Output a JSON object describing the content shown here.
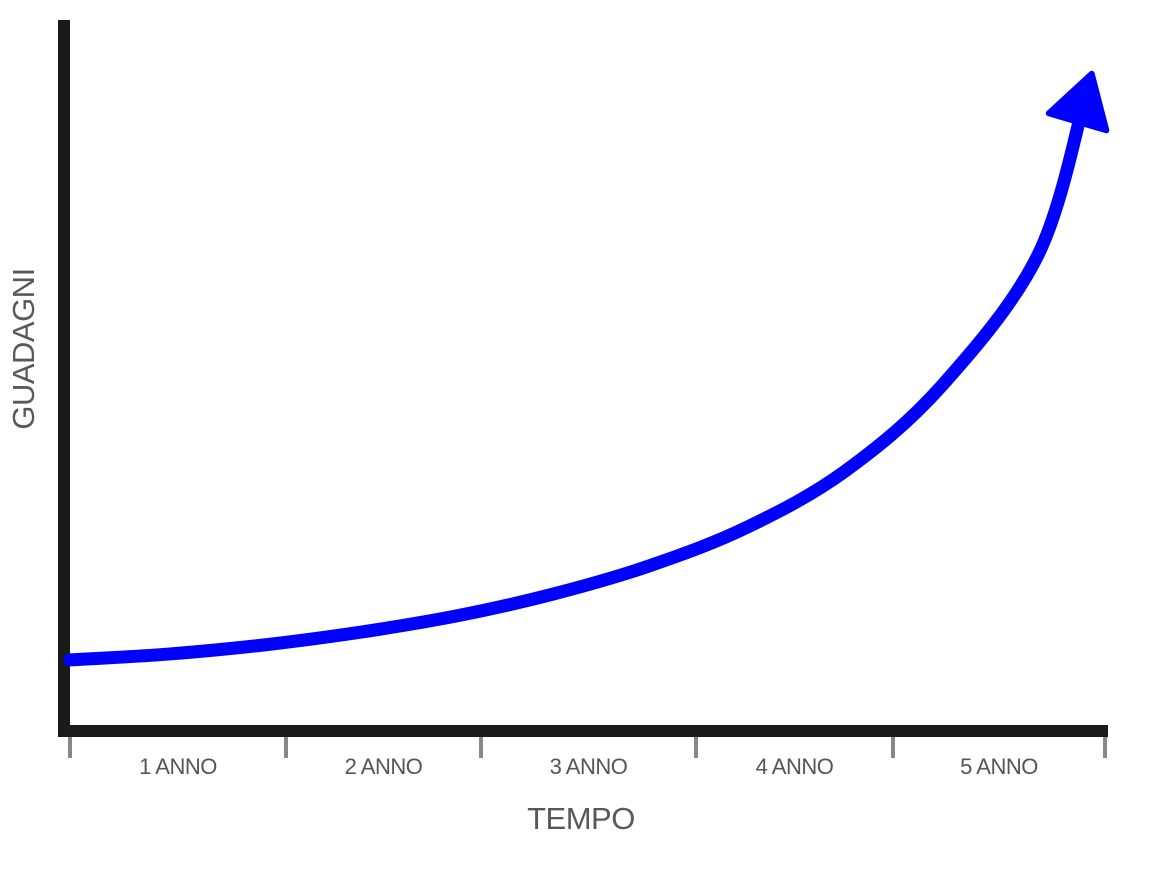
{
  "chart_data": {
    "type": "line",
    "title": "",
    "xlabel": "TEMPO",
    "ylabel": "GUADAGNI",
    "categories": [
      "1 ANNO",
      "2 ANNO",
      "3 ANNO",
      "4 ANNO",
      "5 ANNO"
    ],
    "x": [
      0,
      0.5,
      1,
      1.5,
      2,
      2.5,
      3,
      3.5,
      4,
      4.5,
      5,
      5.25
    ],
    "y": [
      10,
      10.8,
      12.1,
      13.9,
      16.2,
      19.3,
      23.3,
      28.7,
      36.5,
      48.5,
      67,
      90
    ],
    "xlim": [
      0,
      5.35
    ],
    "ylim": [
      0,
      100
    ],
    "arrow_end": true,
    "grid": false,
    "legend": "none"
  },
  "colors": {
    "line": "#0000ff",
    "axis": "#1a1a1a",
    "tick": "#888888",
    "tick_label": "#555555",
    "axis_label": "#595959"
  }
}
